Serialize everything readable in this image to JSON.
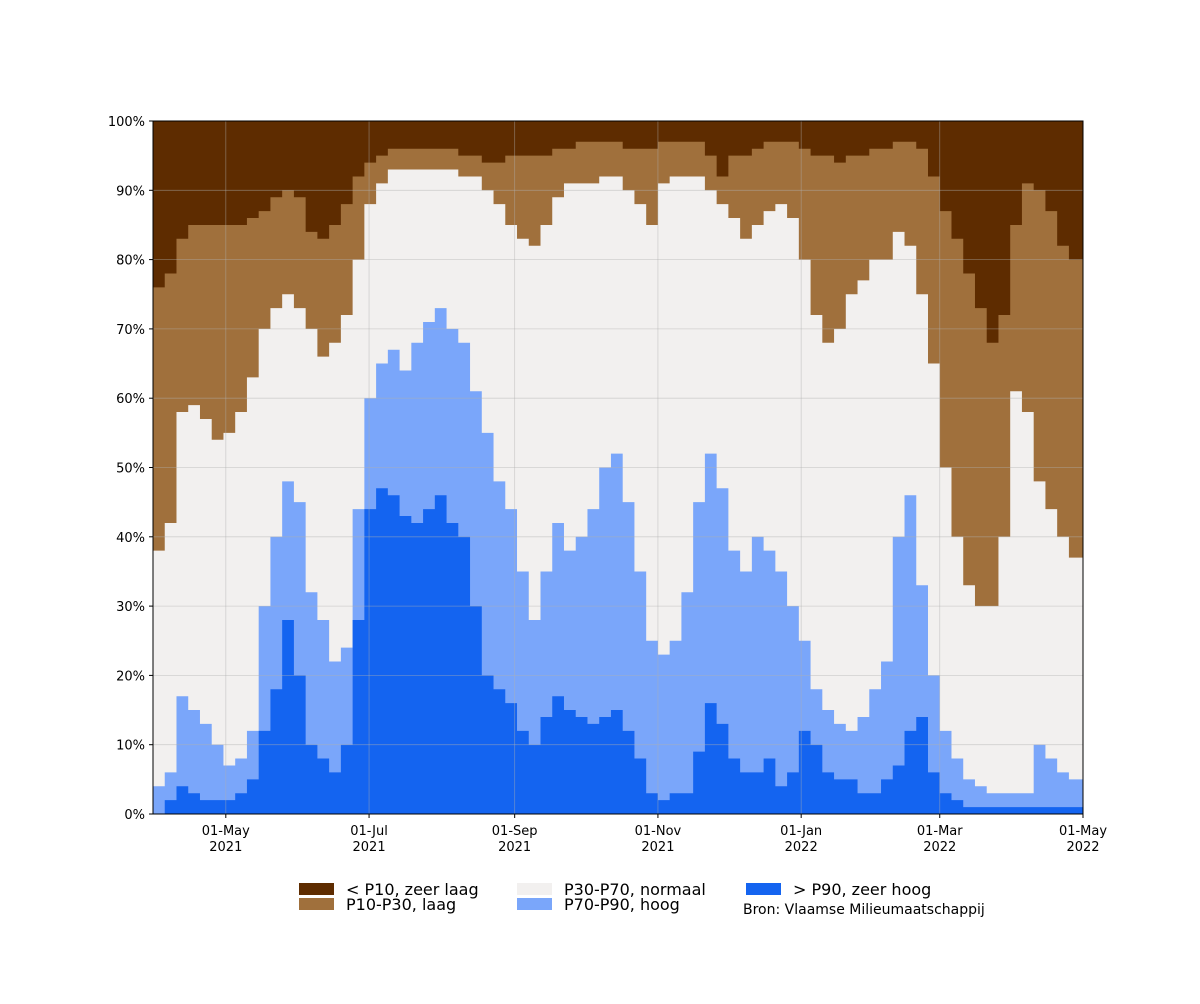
{
  "chart_data": {
    "type": "area",
    "stacked": true,
    "normalized_percent": true,
    "title": "",
    "xlabel": "",
    "ylabel": "",
    "ylim": [
      0,
      100
    ],
    "xlim": [
      "2021-03-31",
      "2022-05-01"
    ],
    "grid": true,
    "legend_position": "bottom",
    "y_ticks": [
      "0%",
      "10%",
      "20%",
      "30%",
      "40%",
      "50%",
      "60%",
      "70%",
      "80%",
      "90%",
      "100%"
    ],
    "x_ticks": [
      {
        "date": "2021-05-01",
        "line1": "01-May",
        "line2": "2021"
      },
      {
        "date": "2021-07-01",
        "line1": "01-Jul",
        "line2": "2021"
      },
      {
        "date": "2021-09-01",
        "line1": "01-Sep",
        "line2": "2021"
      },
      {
        "date": "2021-11-01",
        "line1": "01-Nov",
        "line2": "2021"
      },
      {
        "date": "2022-01-01",
        "line1": "01-Jan",
        "line2": "2022"
      },
      {
        "date": "2022-03-01",
        "line1": "01-Mar",
        "line2": "2022"
      },
      {
        "date": "2022-05-01",
        "line1": "01-May",
        "line2": "2022"
      }
    ],
    "x": [
      "2021-03-31",
      "2021-04-05",
      "2021-04-10",
      "2021-04-15",
      "2021-04-20",
      "2021-04-25",
      "2021-04-30",
      "2021-05-05",
      "2021-05-10",
      "2021-05-15",
      "2021-05-20",
      "2021-05-25",
      "2021-05-30",
      "2021-06-04",
      "2021-06-09",
      "2021-06-14",
      "2021-06-19",
      "2021-06-24",
      "2021-06-29",
      "2021-07-04",
      "2021-07-09",
      "2021-07-14",
      "2021-07-19",
      "2021-07-24",
      "2021-07-29",
      "2021-08-03",
      "2021-08-08",
      "2021-08-13",
      "2021-08-18",
      "2021-08-23",
      "2021-08-28",
      "2021-09-02",
      "2021-09-07",
      "2021-09-12",
      "2021-09-17",
      "2021-09-22",
      "2021-09-27",
      "2021-10-02",
      "2021-10-07",
      "2021-10-12",
      "2021-10-17",
      "2021-10-22",
      "2021-10-27",
      "2021-11-01",
      "2021-11-06",
      "2021-11-11",
      "2021-11-16",
      "2021-11-21",
      "2021-11-26",
      "2021-12-01",
      "2021-12-06",
      "2021-12-11",
      "2021-12-16",
      "2021-12-21",
      "2021-12-26",
      "2021-12-31",
      "2022-01-05",
      "2022-01-10",
      "2022-01-15",
      "2022-01-20",
      "2022-01-25",
      "2022-01-30",
      "2022-02-04",
      "2022-02-09",
      "2022-02-14",
      "2022-02-19",
      "2022-02-24",
      "2022-03-01",
      "2022-03-06",
      "2022-03-11",
      "2022-03-16",
      "2022-03-21",
      "2022-03-26",
      "2022-03-31",
      "2022-04-05",
      "2022-04-10",
      "2022-04-15",
      "2022-04-20",
      "2022-04-25",
      "2022-05-01"
    ],
    "series": [
      {
        "name": "> P90, zeer hoog",
        "color": "#1464f0",
        "values": [
          0,
          2,
          4,
          3,
          2,
          2,
          2,
          3,
          5,
          12,
          18,
          28,
          20,
          10,
          8,
          6,
          10,
          28,
          44,
          47,
          46,
          43,
          42,
          44,
          46,
          42,
          40,
          30,
          20,
          18,
          16,
          12,
          10,
          14,
          17,
          15,
          14,
          13,
          14,
          15,
          12,
          8,
          3,
          2,
          3,
          3,
          9,
          16,
          13,
          8,
          6,
          6,
          8,
          4,
          6,
          12,
          10,
          6,
          5,
          5,
          3,
          3,
          5,
          7,
          12,
          14,
          6,
          3,
          2,
          1,
          1,
          1,
          1,
          1,
          1,
          1,
          1,
          1,
          1,
          1
        ]
      },
      {
        "name": "P70-P90, hoog",
        "color": "#7aa6fa",
        "values": [
          4,
          6,
          17,
          15,
          13,
          10,
          7,
          8,
          12,
          30,
          40,
          48,
          45,
          32,
          28,
          22,
          24,
          44,
          60,
          65,
          67,
          64,
          68,
          71,
          73,
          70,
          68,
          61,
          55,
          48,
          44,
          35,
          28,
          35,
          42,
          38,
          40,
          44,
          50,
          52,
          45,
          35,
          25,
          23,
          25,
          32,
          45,
          52,
          47,
          38,
          35,
          40,
          38,
          35,
          30,
          25,
          18,
          15,
          13,
          12,
          14,
          18,
          22,
          40,
          46,
          33,
          20,
          12,
          8,
          5,
          4,
          3,
          3,
          3,
          3,
          10,
          8,
          6,
          5,
          4
        ]
      },
      {
        "name": "P30-P70, normaal",
        "color": "#f2f0ef",
        "values": [
          38,
          42,
          58,
          59,
          57,
          54,
          55,
          58,
          63,
          70,
          73,
          75,
          73,
          70,
          66,
          68,
          72,
          80,
          88,
          91,
          93,
          93,
          93,
          93,
          93,
          93,
          92,
          92,
          90,
          88,
          85,
          83,
          82,
          85,
          89,
          91,
          91,
          91,
          92,
          92,
          90,
          88,
          85,
          91,
          92,
          92,
          92,
          90,
          88,
          86,
          83,
          85,
          87,
          88,
          86,
          80,
          72,
          68,
          70,
          75,
          77,
          80,
          80,
          84,
          82,
          75,
          65,
          50,
          40,
          33,
          30,
          30,
          40,
          61,
          58,
          48,
          44,
          40,
          37,
          34
        ]
      },
      {
        "name": "P10-P30, laag",
        "color": "#a0703c",
        "values": [
          76,
          78,
          83,
          85,
          85,
          85,
          85,
          85,
          86,
          87,
          89,
          90,
          89,
          84,
          83,
          85,
          88,
          92,
          94,
          95,
          96,
          96,
          96,
          96,
          96,
          96,
          95,
          95,
          94,
          94,
          95,
          95,
          95,
          95,
          96,
          96,
          97,
          97,
          97,
          97,
          96,
          96,
          96,
          97,
          97,
          97,
          97,
          95,
          92,
          95,
          95,
          96,
          97,
          97,
          97,
          96,
          95,
          95,
          94,
          95,
          95,
          96,
          96,
          97,
          97,
          96,
          92,
          87,
          83,
          78,
          73,
          68,
          72,
          85,
          91,
          90,
          87,
          82,
          80,
          77
        ]
      },
      {
        "name": "< P10, zeer laag",
        "color": "#5e2c00",
        "values": [
          100,
          100,
          100,
          100,
          100,
          100,
          100,
          100,
          100,
          100,
          100,
          100,
          100,
          100,
          100,
          100,
          100,
          100,
          100,
          100,
          100,
          100,
          100,
          100,
          100,
          100,
          100,
          100,
          100,
          100,
          100,
          100,
          100,
          100,
          100,
          100,
          100,
          100,
          100,
          100,
          100,
          100,
          100,
          100,
          100,
          100,
          100,
          100,
          100,
          100,
          100,
          100,
          100,
          100,
          100,
          100,
          100,
          100,
          100,
          100,
          100,
          100,
          100,
          100,
          100,
          100,
          100,
          100,
          100,
          100,
          100,
          100,
          100,
          100,
          100,
          100,
          100,
          100,
          100,
          100
        ]
      }
    ],
    "value_semantics": "cumulative upper boundary (%) of each class, stacked from bottom",
    "legend": [
      {
        "label": "< P10, zeer laag",
        "color": "#5e2c00"
      },
      {
        "label": "P10-P30, laag",
        "color": "#a0703c"
      },
      {
        "label": "P30-P70, normaal",
        "color": "#f2f0ef"
      },
      {
        "label": "P70-P90, hoog",
        "color": "#7aa6fa"
      },
      {
        "label": "> P90, zeer hoog",
        "color": "#1464f0"
      }
    ],
    "source": "Bron: Vlaamse Milieumaatschappij"
  }
}
